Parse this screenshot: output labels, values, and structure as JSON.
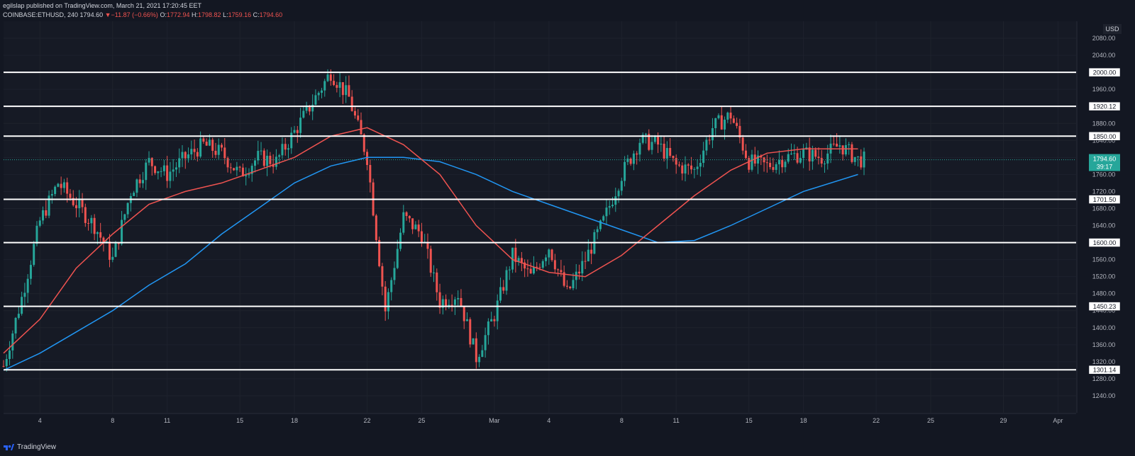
{
  "header": {
    "publisher": "egilslap published on TradingView.com, March 21, 2021 17:20:45 EET",
    "symbol": "COINBASE:ETHUSD, 240",
    "last": "1794.60",
    "change": "−11.87 (−0.66%)",
    "o_label": "O:",
    "o": "1772.94",
    "h_label": "H:",
    "h": "1798.82",
    "l_label": "L:",
    "l": "1759.16",
    "c_label": "C:",
    "c": "1794.60"
  },
  "footer": {
    "brand": "TradingView"
  },
  "price_axis": {
    "currency": "USD",
    "current_price": "1794.60",
    "countdown": "39:17"
  },
  "colors": {
    "background": "#131722",
    "pane": "#161a25",
    "grid": "#1e222d",
    "up": "#26a69a",
    "down": "#ef5350",
    "ma_fast": "#ef5350",
    "ma_slow": "#2196f3",
    "level": "#ffffff",
    "current_badge": "#26a69a"
  },
  "chart_data": {
    "type": "candlestick",
    "symbol": "COINBASE:ETHUSD",
    "interval": "240",
    "ylim": [
      1200,
      2120
    ],
    "y_ticks": [
      1240,
      1280,
      1320,
      1360,
      1400,
      1440,
      1480,
      1520,
      1560,
      1600,
      1640,
      1680,
      1720,
      1760,
      1800,
      1840,
      1880,
      1920,
      1960,
      2000,
      2040,
      2080
    ],
    "y_tick_labels": [
      "1240.00",
      "1280.00",
      "1320.00",
      "1360.00",
      "1400.00",
      "1440.00",
      "1480.00",
      "1520.00",
      "1560.00",
      "1600.00",
      "1640.00",
      "1680.00",
      "1720.00",
      "1760.00",
      "1800.00",
      "1840.00",
      "1880.00",
      "1920.00",
      "1960.00",
      "2000.00",
      "2040.00",
      "2080.00"
    ],
    "x_start": "2021-02-02",
    "x_end": "2021-04-02",
    "x_ticks": [
      {
        "date": "2021-02-04",
        "label": "4"
      },
      {
        "date": "2021-02-08",
        "label": "8"
      },
      {
        "date": "2021-02-11",
        "label": "11"
      },
      {
        "date": "2021-02-15",
        "label": "15"
      },
      {
        "date": "2021-02-18",
        "label": "18"
      },
      {
        "date": "2021-02-22",
        "label": "22"
      },
      {
        "date": "2021-02-25",
        "label": "25"
      },
      {
        "date": "2021-03-01",
        "label": "Mar"
      },
      {
        "date": "2021-03-04",
        "label": "4"
      },
      {
        "date": "2021-03-08",
        "label": "8"
      },
      {
        "date": "2021-03-11",
        "label": "11"
      },
      {
        "date": "2021-03-15",
        "label": "15"
      },
      {
        "date": "2021-03-18",
        "label": "18"
      },
      {
        "date": "2021-03-22",
        "label": "22"
      },
      {
        "date": "2021-03-25",
        "label": "25"
      },
      {
        "date": "2021-03-29",
        "label": "29"
      },
      {
        "date": "2021-04-01",
        "label": "Apr"
      }
    ],
    "horizontal_levels": [
      {
        "value": 2000.0,
        "label": "2000.00"
      },
      {
        "value": 1920.12,
        "label": "1920.12"
      },
      {
        "value": 1850.0,
        "label": "1850.00"
      },
      {
        "value": 1701.5,
        "label": "1701.50"
      },
      {
        "value": 1600.0,
        "label": "1600.00"
      },
      {
        "value": 1450.23,
        "label": "1450.23"
      },
      {
        "value": 1301.14,
        "label": "1301.14"
      }
    ],
    "current_price": 1794.6,
    "price_path": [
      [
        "2021-02-02",
        1310
      ],
      [
        "2021-02-03",
        1470
      ],
      [
        "2021-02-04",
        1650
      ],
      [
        "2021-02-05",
        1740
      ],
      [
        "2021-02-06",
        1690
      ],
      [
        "2021-02-07",
        1640
      ],
      [
        "2021-02-08",
        1560
      ],
      [
        "2021-02-09",
        1720
      ],
      [
        "2021-02-10",
        1790
      ],
      [
        "2021-02-11",
        1760
      ],
      [
        "2021-02-12",
        1800
      ],
      [
        "2021-02-13",
        1830
      ],
      [
        "2021-02-14",
        1810
      ],
      [
        "2021-02-15",
        1760
      ],
      [
        "2021-02-16",
        1800
      ],
      [
        "2021-02-17",
        1790
      ],
      [
        "2021-02-18",
        1860
      ],
      [
        "2021-02-19",
        1930
      ],
      [
        "2021-02-20",
        2000
      ],
      [
        "2021-02-21",
        1940
      ],
      [
        "2021-02-22",
        1800
      ],
      [
        "2021-02-23",
        1440
      ],
      [
        "2021-02-24",
        1660
      ],
      [
        "2021-02-25",
        1620
      ],
      [
        "2021-02-26",
        1460
      ],
      [
        "2021-02-27",
        1480
      ],
      [
        "2021-02-28",
        1330
      ],
      [
        "2021-03-01",
        1430
      ],
      [
        "2021-03-02",
        1570
      ],
      [
        "2021-03-03",
        1520
      ],
      [
        "2021-03-04",
        1590
      ],
      [
        "2021-03-05",
        1480
      ],
      [
        "2021-03-06",
        1560
      ],
      [
        "2021-03-07",
        1650
      ],
      [
        "2021-03-08",
        1760
      ],
      [
        "2021-03-09",
        1840
      ],
      [
        "2021-03-10",
        1830
      ],
      [
        "2021-03-11",
        1780
      ],
      [
        "2021-03-12",
        1770
      ],
      [
        "2021-03-13",
        1870
      ],
      [
        "2021-03-14",
        1900
      ],
      [
        "2021-03-15",
        1790
      ],
      [
        "2021-03-16",
        1780
      ],
      [
        "2021-03-17",
        1800
      ],
      [
        "2021-03-18",
        1810
      ],
      [
        "2021-03-19",
        1800
      ],
      [
        "2021-03-20",
        1830
      ],
      [
        "2021-03-21",
        1794.6
      ]
    ],
    "ma_fast_path": [
      [
        "2021-02-02",
        1340
      ],
      [
        "2021-02-04",
        1420
      ],
      [
        "2021-02-06",
        1540
      ],
      [
        "2021-02-08",
        1620
      ],
      [
        "2021-02-10",
        1690
      ],
      [
        "2021-02-12",
        1720
      ],
      [
        "2021-02-14",
        1740
      ],
      [
        "2021-02-16",
        1770
      ],
      [
        "2021-02-18",
        1800
      ],
      [
        "2021-02-20",
        1850
      ],
      [
        "2021-02-22",
        1870
      ],
      [
        "2021-02-24",
        1830
      ],
      [
        "2021-02-26",
        1760
      ],
      [
        "2021-02-28",
        1640
      ],
      [
        "2021-03-02",
        1560
      ],
      [
        "2021-03-04",
        1530
      ],
      [
        "2021-03-06",
        1520
      ],
      [
        "2021-03-08",
        1570
      ],
      [
        "2021-03-10",
        1640
      ],
      [
        "2021-03-12",
        1710
      ],
      [
        "2021-03-14",
        1770
      ],
      [
        "2021-03-16",
        1810
      ],
      [
        "2021-03-18",
        1820
      ],
      [
        "2021-03-21",
        1820
      ]
    ],
    "ma_slow_path": [
      [
        "2021-02-02",
        1300
      ],
      [
        "2021-02-04",
        1340
      ],
      [
        "2021-02-06",
        1390
      ],
      [
        "2021-02-08",
        1440
      ],
      [
        "2021-02-10",
        1500
      ],
      [
        "2021-02-12",
        1550
      ],
      [
        "2021-02-14",
        1620
      ],
      [
        "2021-02-16",
        1680
      ],
      [
        "2021-02-18",
        1740
      ],
      [
        "2021-02-20",
        1780
      ],
      [
        "2021-02-22",
        1800
      ],
      [
        "2021-02-24",
        1800
      ],
      [
        "2021-02-26",
        1790
      ],
      [
        "2021-02-28",
        1760
      ],
      [
        "2021-03-02",
        1720
      ],
      [
        "2021-03-04",
        1690
      ],
      [
        "2021-03-06",
        1660
      ],
      [
        "2021-03-08",
        1630
      ],
      [
        "2021-03-10",
        1600
      ],
      [
        "2021-03-12",
        1605
      ],
      [
        "2021-03-14",
        1640
      ],
      [
        "2021-03-16",
        1680
      ],
      [
        "2021-03-18",
        1720
      ],
      [
        "2021-03-21",
        1760
      ]
    ]
  }
}
